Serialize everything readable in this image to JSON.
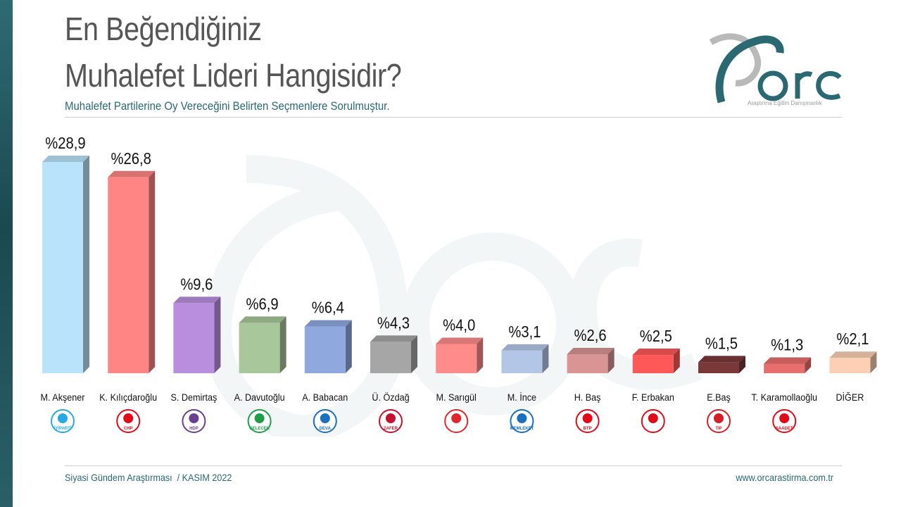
{
  "title_line_1": "En Beğendiğiniz",
  "title_line_2": "Muhalefet Lideri Hangisidir?",
  "subtitle": "Muhalefet Partilerine Oy Vereceğini Belirten Seçmenlere Sorulmuştur.",
  "footer": {
    "left": "Siyasi Gündem Araştırması  / KASIM 2022",
    "right": "www.orcarastirma.com.tr"
  },
  "logo": {
    "wordmark": "ORC",
    "tagline": "Araştırma Eğitim Danışmanlık"
  },
  "colors": {
    "accent": "#2a6872",
    "title": "#555555"
  },
  "chart_data": {
    "type": "bar",
    "title": "En Beğendiğiniz Muhalefet Lideri Hangisidir?",
    "xlabel": "",
    "ylabel": "",
    "ylim": [
      0,
      30
    ],
    "grid": false,
    "legend": "none",
    "categories": [
      "M. Akşener",
      "K. Kılıçdaroğlu",
      "S. Demirtaş",
      "A. Davutoğlu",
      "A. Babacan",
      "Ü. Özdağ",
      "M. Sarıgül",
      "M. İnce",
      "H. Baş",
      "F. Erbakan",
      "E.Baş",
      "T. Karamollaoğlu",
      "DİĞER"
    ],
    "values": [
      28.9,
      26.8,
      9.6,
      6.9,
      6.4,
      4.3,
      4.0,
      3.1,
      2.6,
      2.5,
      1.5,
      1.3,
      2.1
    ],
    "value_labels": [
      "%28,9",
      "%26,8",
      "%9,6",
      "%6,9",
      "%6,4",
      "%4,3",
      "%4,0",
      "%3,1",
      "%2,6",
      "%2,5",
      "%1,5",
      "%1,3",
      "%2,1"
    ],
    "bar_colors": [
      "#b9e2fb",
      "#ff8585",
      "#b98ede",
      "#a8c79a",
      "#8fa9df",
      "#a6a6a6",
      "#ff8b8b",
      "#b4c6e8",
      "#d99494",
      "#ff5858",
      "#7a3838",
      "#e86d6d",
      "#fcd0b4"
    ],
    "party_badges": [
      {
        "icon": "iyi-parti-icon",
        "label": "İYİPARTİ",
        "color": "#27a9e1"
      },
      {
        "icon": "chp-icon",
        "label": "CHP",
        "color": "#e30a17"
      },
      {
        "icon": "hdp-icon",
        "label": "HDP",
        "color": "#6b3f8f"
      },
      {
        "icon": "gelecek-icon",
        "label": "GELECEK",
        "color": "#1e9e48"
      },
      {
        "icon": "deva-icon",
        "label": "DEVA",
        "color": "#1a6fbf"
      },
      {
        "icon": "zafer-icon",
        "label": "ZAFER",
        "color": "#c8102e"
      },
      {
        "icon": "tdp-icon",
        "label": "",
        "color": "#e3262b"
      },
      {
        "icon": "memleket-icon",
        "label": "MEMLEKET",
        "color": "#1a6fbf"
      },
      {
        "icon": "btp-icon",
        "label": "BTP",
        "color": "#e30a17"
      },
      {
        "icon": "yeniden-refah-icon",
        "label": "",
        "color": "#e30a17"
      },
      {
        "icon": "tip-icon",
        "label": "TİP",
        "color": "#d51f26"
      },
      {
        "icon": "saadet-icon",
        "label": "SAADET",
        "color": "#e30a17"
      }
    ]
  }
}
